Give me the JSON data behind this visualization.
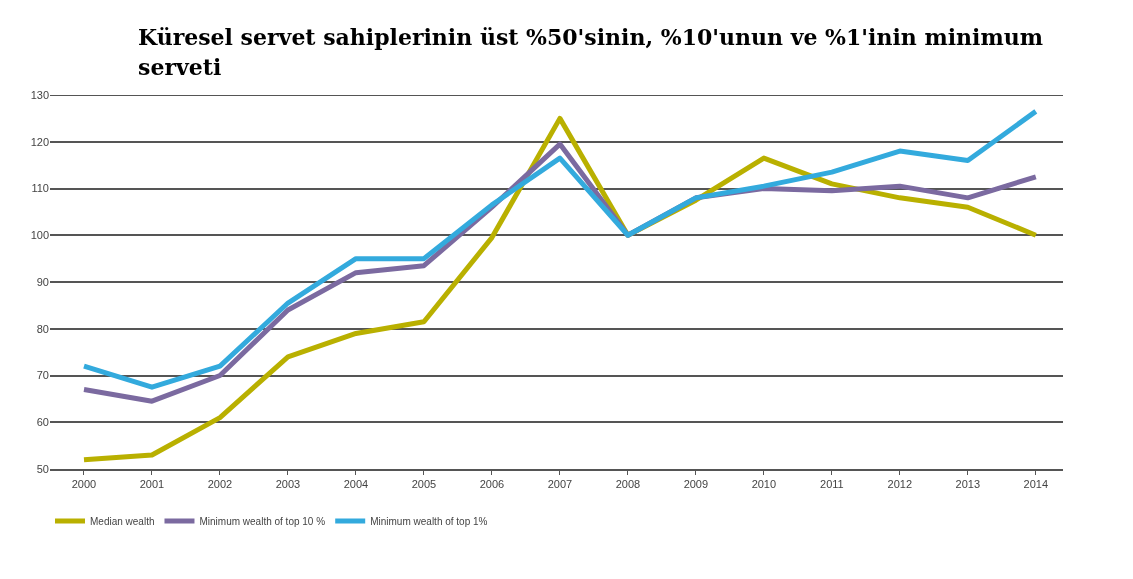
{
  "chart_data": {
    "type": "line",
    "title": "Küresel servet sahiplerinin üst %50'sinin, %10'unun ve %1'inin minimum serveti",
    "categories": [
      "2000",
      "2001",
      "2002",
      "2003",
      "2004",
      "2005",
      "2006",
      "2007",
      "2008",
      "2009",
      "2010",
      "2011",
      "2012",
      "2013",
      "2014"
    ],
    "series": [
      {
        "name": "Median wealth",
        "color": "#b9b000",
        "values": [
          52,
          53,
          61,
          74,
          79,
          81.5,
          99.5,
          125,
          100,
          107.5,
          116.5,
          111,
          108,
          106,
          100
        ]
      },
      {
        "name": "Minimum wealth of top 10 %",
        "color": "#7b6aa0",
        "values": [
          67,
          64.5,
          70,
          84,
          92,
          93.5,
          106,
          119.5,
          100,
          108,
          110,
          109.5,
          110.5,
          108,
          112.5
        ]
      },
      {
        "name": "Minimum wealth of top 1%",
        "color": "#33aadd",
        "values": [
          72,
          67.5,
          72,
          85.5,
          95,
          95,
          106.5,
          116.5,
          100,
          108,
          110.5,
          113.5,
          118,
          116,
          126.5
        ]
      }
    ],
    "ylim": [
      50,
      130
    ],
    "yticks": [
      50,
      60,
      70,
      80,
      90,
      100,
      110,
      120,
      130
    ],
    "grid": "y",
    "legend": "bottom left",
    "marker": "none",
    "line_style": "solid"
  }
}
